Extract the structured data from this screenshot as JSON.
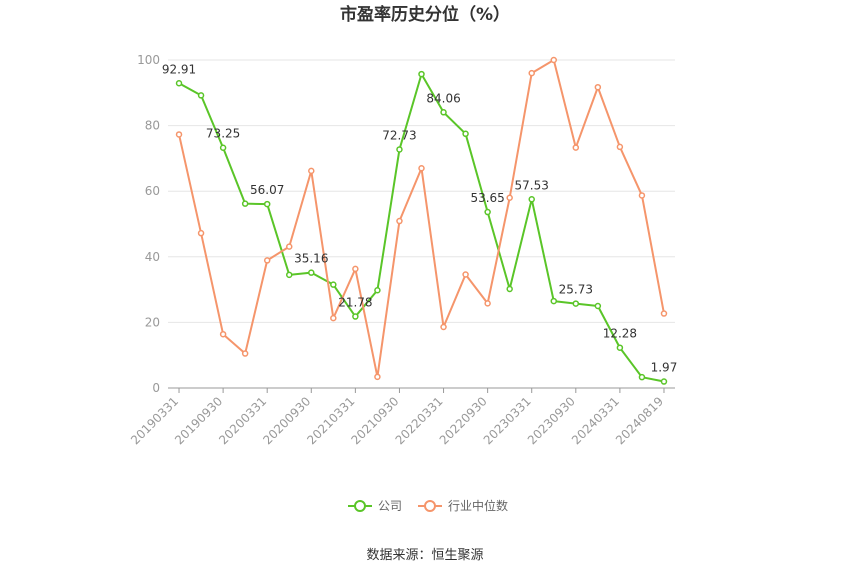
{
  "chart_data": {
    "type": "line",
    "title": "市盈率历史分位（%）",
    "source": "数据来源：恒生聚源",
    "x": [
      "20190331",
      "20190630",
      "20190930",
      "20191231",
      "20200331",
      "20200630",
      "20200930",
      "20201231",
      "20210331",
      "20210630",
      "20210930",
      "20211231",
      "20220331",
      "20220630",
      "20220930",
      "20221231",
      "20230331",
      "20230630",
      "20230930",
      "20231231",
      "20240331",
      "20240630",
      "20240819"
    ],
    "x_tick_labels": [
      "20190331",
      "20190930",
      "20200331",
      "20200930",
      "20210331",
      "20210930",
      "20220331",
      "20220930",
      "20230331",
      "20230930",
      "20240331",
      "20240819"
    ],
    "ylim": [
      0,
      100
    ],
    "y_ticks": [
      "0",
      "20",
      "40",
      "60",
      "80",
      "100"
    ],
    "grid": true,
    "legend_position": "bottom",
    "series": [
      {
        "name": "公司",
        "color": "#5ac528",
        "values": [
          92.91,
          89.2,
          73.25,
          56.2,
          56.07,
          34.5,
          35.16,
          31.5,
          21.78,
          29.8,
          72.73,
          95.7,
          84.06,
          77.5,
          53.65,
          30.2,
          57.53,
          26.5,
          25.73,
          25.0,
          12.28,
          3.3,
          1.97
        ],
        "labels": [
          "92.91",
          "",
          "73.25",
          "",
          "56.07",
          "",
          "35.16",
          "",
          "21.78",
          "",
          "72.73",
          "",
          "84.06",
          "",
          "53.65",
          "",
          "57.53",
          "",
          "25.73",
          "",
          "12.28",
          "",
          "1.97"
        ]
      },
      {
        "name": "行业中位数",
        "color": "#f5956b",
        "values": [
          77.3,
          47.2,
          16.4,
          10.5,
          38.9,
          43.1,
          66.2,
          21.3,
          36.3,
          3.4,
          50.9,
          67.0,
          18.6,
          34.6,
          25.8,
          58.0,
          96.0,
          100.0,
          73.3,
          91.7,
          73.5,
          58.7,
          22.7
        ]
      }
    ]
  }
}
